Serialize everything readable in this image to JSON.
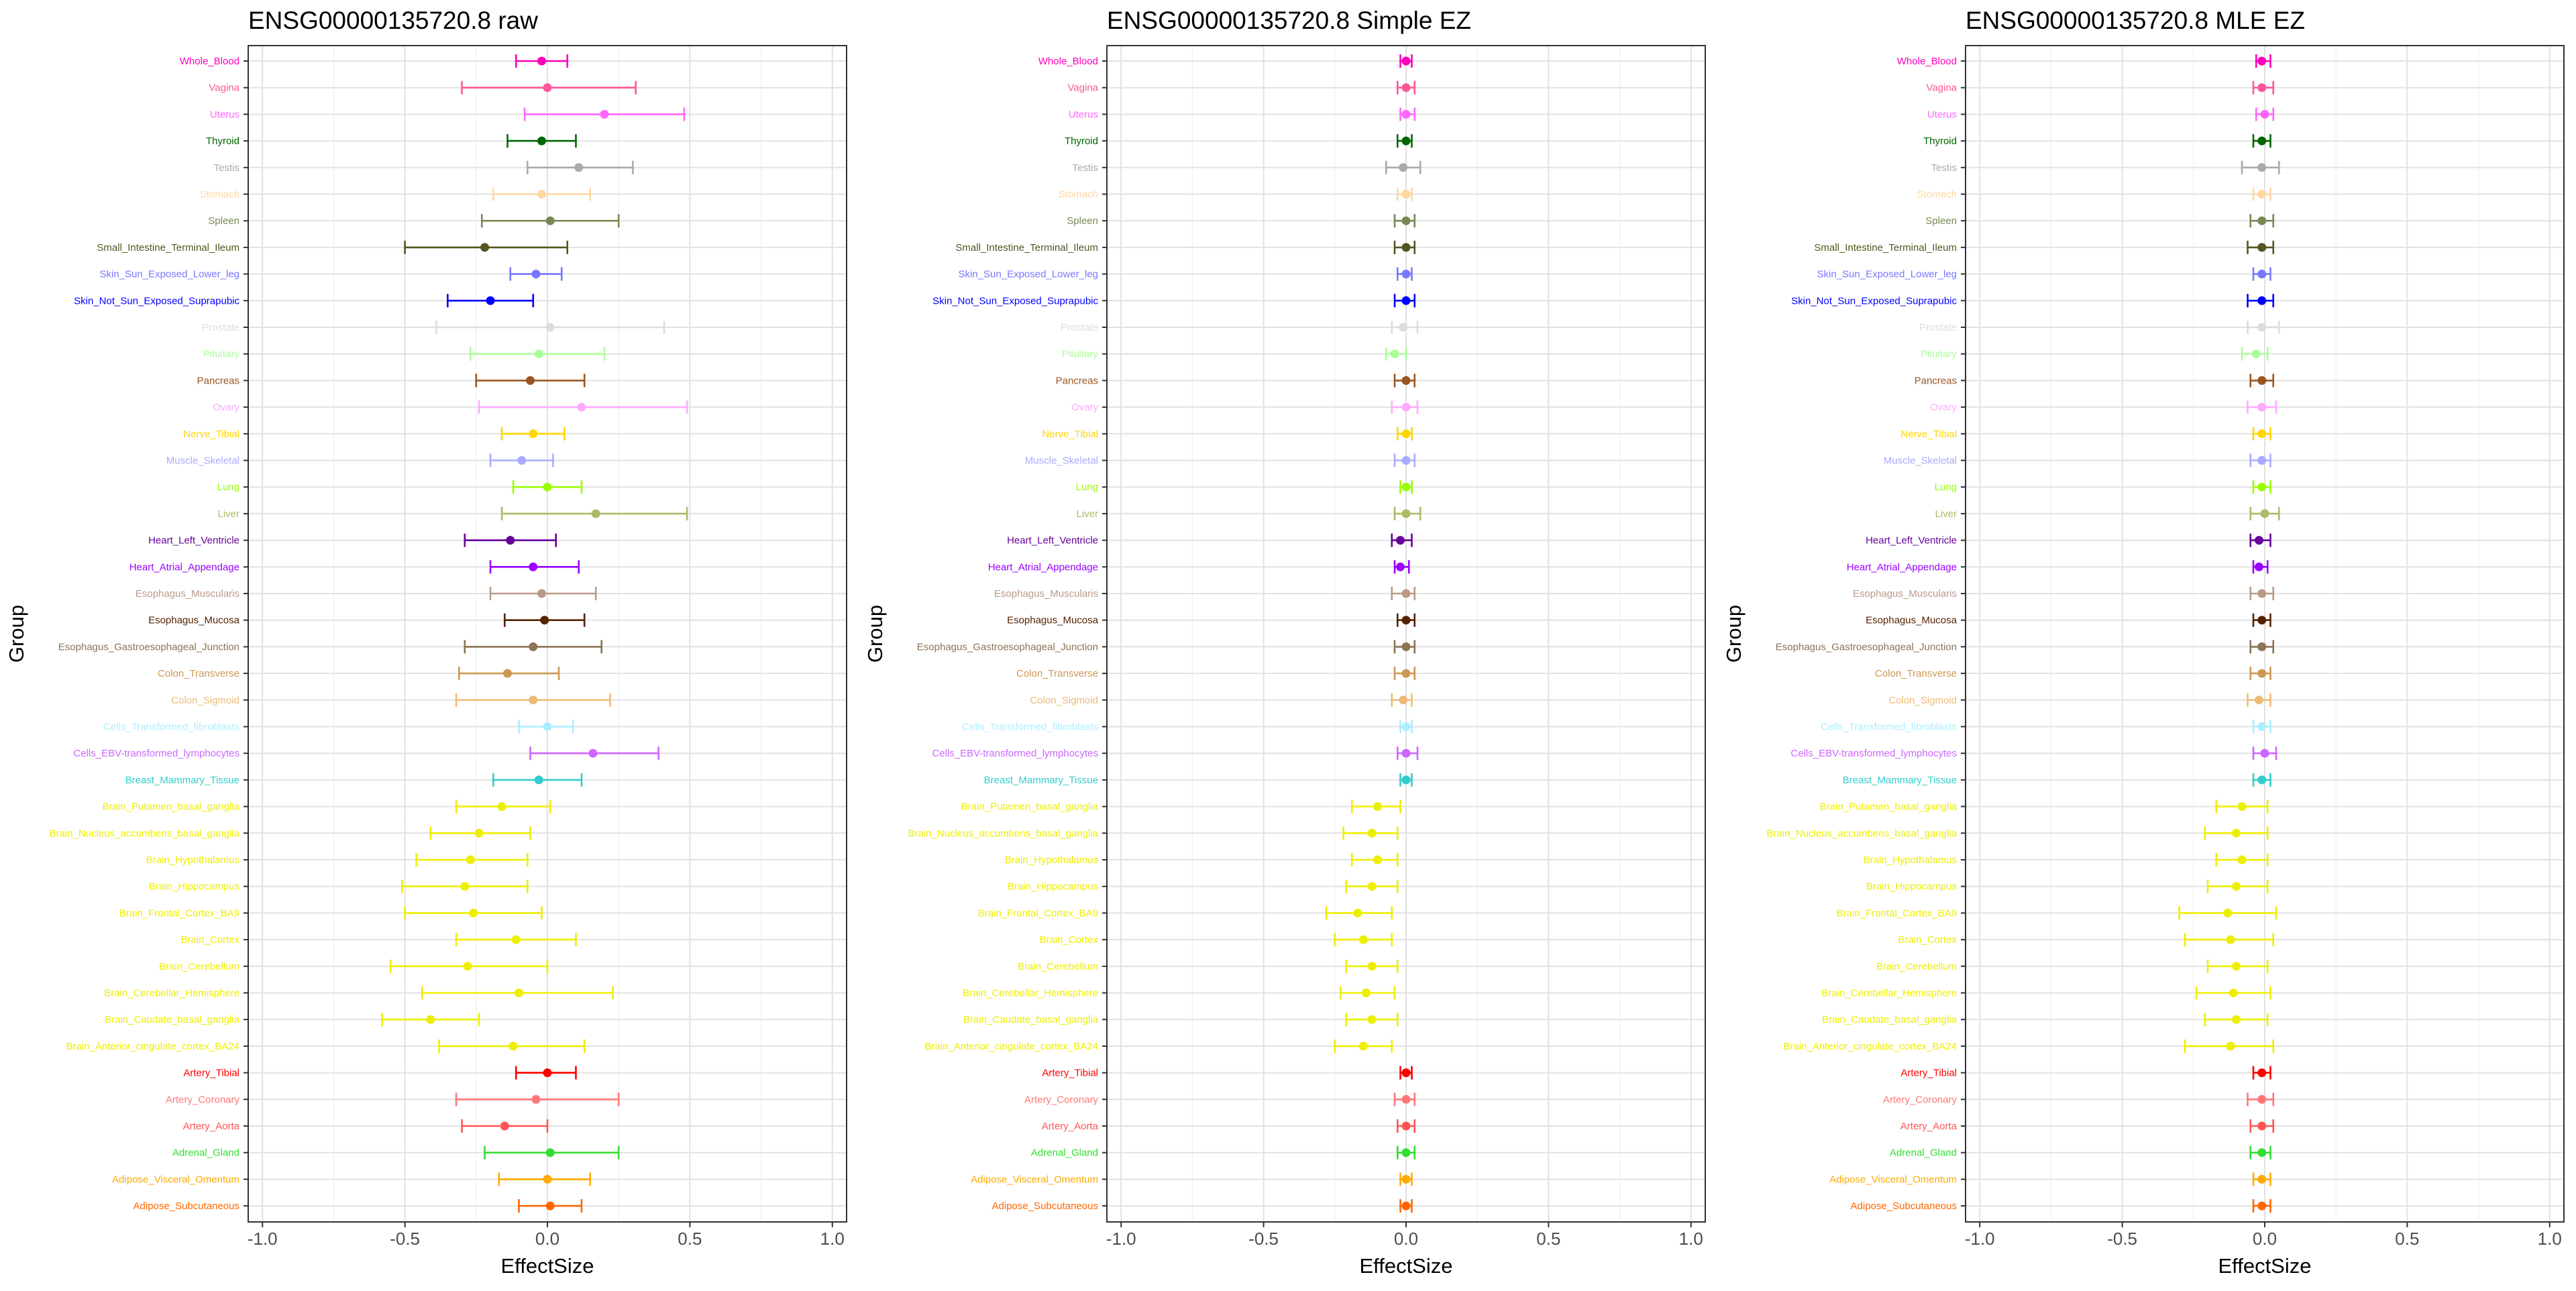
{
  "groups": [
    {
      "name": "Whole_Blood",
      "color": "#FF00BB"
    },
    {
      "name": "Vagina",
      "color": "#FF5599"
    },
    {
      "name": "Uterus",
      "color": "#FF66FF"
    },
    {
      "name": "Thyroid",
      "color": "#006600"
    },
    {
      "name": "Testis",
      "color": "#AAAAAA"
    },
    {
      "name": "Stomach",
      "color": "#FFD79F"
    },
    {
      "name": "Spleen",
      "color": "#778855"
    },
    {
      "name": "Small_Intestine_Terminal_Ileum",
      "color": "#555522"
    },
    {
      "name": "Skin_Sun_Exposed_Lower_leg",
      "color": "#7777FF"
    },
    {
      "name": "Skin_Not_Sun_Exposed_Suprapubic",
      "color": "#0000FF"
    },
    {
      "name": "Prostate",
      "color": "#DDDDDD"
    },
    {
      "name": "Pituitary",
      "color": "#AAFF99"
    },
    {
      "name": "Pancreas",
      "color": "#995522"
    },
    {
      "name": "Ovary",
      "color": "#FFAAFF"
    },
    {
      "name": "Nerve_Tibial",
      "color": "#FFD700"
    },
    {
      "name": "Muscle_Skeletal",
      "color": "#AAAAFF"
    },
    {
      "name": "Lung",
      "color": "#99FF00"
    },
    {
      "name": "Liver",
      "color": "#AABB66"
    },
    {
      "name": "Heart_Left_Ventricle",
      "color": "#660099"
    },
    {
      "name": "Heart_Atrial_Appendage",
      "color": "#9900FF"
    },
    {
      "name": "Esophagus_Muscularis",
      "color": "#BB9988"
    },
    {
      "name": "Esophagus_Mucosa",
      "color": "#552200"
    },
    {
      "name": "Esophagus_Gastroesophageal_Junction",
      "color": "#8B7355"
    },
    {
      "name": "Colon_Transverse",
      "color": "#CC9955"
    },
    {
      "name": "Colon_Sigmoid",
      "color": "#EEBB77"
    },
    {
      "name": "Cells_Transformed_fibroblasts",
      "color": "#AAEEFF"
    },
    {
      "name": "Cells_EBV-transformed_lymphocytes",
      "color": "#CC66FF"
    },
    {
      "name": "Breast_Mammary_Tissue",
      "color": "#33CCCC"
    },
    {
      "name": "Brain_Putamen_basal_ganglia",
      "color": "#EEEE00"
    },
    {
      "name": "Brain_Nucleus_accumbens_basal_ganglia",
      "color": "#EEEE00"
    },
    {
      "name": "Brain_Hypothalamus",
      "color": "#EEEE00"
    },
    {
      "name": "Brain_Hippocampus",
      "color": "#EEEE00"
    },
    {
      "name": "Brain_Frontal_Cortex_BA9",
      "color": "#EEEE00"
    },
    {
      "name": "Brain_Cortex",
      "color": "#EEEE00"
    },
    {
      "name": "Brain_Cerebellum",
      "color": "#EEEE00"
    },
    {
      "name": "Brain_Cerebellar_Hemisphere",
      "color": "#EEEE00"
    },
    {
      "name": "Brain_Caudate_basal_ganglia",
      "color": "#EEEE00"
    },
    {
      "name": "Brain_Anterior_cingulate_cortex_BA24",
      "color": "#EEEE00"
    },
    {
      "name": "Artery_Tibial",
      "color": "#FF0000"
    },
    {
      "name": "Artery_Coronary",
      "color": "#FF7777"
    },
    {
      "name": "Artery_Aorta",
      "color": "#FF5555"
    },
    {
      "name": "Adrenal_Gland",
      "color": "#33DD33"
    },
    {
      "name": "Adipose_Visceral_Omentum",
      "color": "#FFAA00"
    },
    {
      "name": "Adipose_Subcutaneous",
      "color": "#FF6600"
    }
  ],
  "chart_data": [
    {
      "type": "forest",
      "title": "ENSG00000135720.8 raw",
      "xlabel": "EffectSize",
      "ylabel": "Group",
      "xlim": [
        -1.05,
        1.05
      ],
      "xticks": [
        -1.0,
        -0.5,
        0.0,
        0.5,
        1.0
      ],
      "xtick_labels": [
        "-1.0",
        "-0.5",
        "0.0",
        "0.5",
        "1.0"
      ],
      "points": [
        {
          "estimate": -0.02,
          "lower": -0.11,
          "upper": 0.07
        },
        {
          "estimate": 0.0,
          "lower": -0.3,
          "upper": 0.31
        },
        {
          "estimate": 0.2,
          "lower": -0.08,
          "upper": 0.48
        },
        {
          "estimate": -0.02,
          "lower": -0.14,
          "upper": 0.1
        },
        {
          "estimate": 0.11,
          "lower": -0.07,
          "upper": 0.3
        },
        {
          "estimate": -0.02,
          "lower": -0.19,
          "upper": 0.15
        },
        {
          "estimate": 0.01,
          "lower": -0.23,
          "upper": 0.25
        },
        {
          "estimate": -0.22,
          "lower": -0.5,
          "upper": 0.07
        },
        {
          "estimate": -0.04,
          "lower": -0.13,
          "upper": 0.05
        },
        {
          "estimate": -0.2,
          "lower": -0.35,
          "upper": -0.05
        },
        {
          "estimate": 0.01,
          "lower": -0.39,
          "upper": 0.41
        },
        {
          "estimate": -0.03,
          "lower": -0.27,
          "upper": 0.2
        },
        {
          "estimate": -0.06,
          "lower": -0.25,
          "upper": 0.13
        },
        {
          "estimate": 0.12,
          "lower": -0.24,
          "upper": 0.49
        },
        {
          "estimate": -0.05,
          "lower": -0.16,
          "upper": 0.06
        },
        {
          "estimate": -0.09,
          "lower": -0.2,
          "upper": 0.02
        },
        {
          "estimate": 0.0,
          "lower": -0.12,
          "upper": 0.12
        },
        {
          "estimate": 0.17,
          "lower": -0.16,
          "upper": 0.49
        },
        {
          "estimate": -0.13,
          "lower": -0.29,
          "upper": 0.03
        },
        {
          "estimate": -0.05,
          "lower": -0.2,
          "upper": 0.11
        },
        {
          "estimate": -0.02,
          "lower": -0.2,
          "upper": 0.17
        },
        {
          "estimate": -0.01,
          "lower": -0.15,
          "upper": 0.13
        },
        {
          "estimate": -0.05,
          "lower": -0.29,
          "upper": 0.19
        },
        {
          "estimate": -0.14,
          "lower": -0.31,
          "upper": 0.04
        },
        {
          "estimate": -0.05,
          "lower": -0.32,
          "upper": 0.22
        },
        {
          "estimate": 0.0,
          "lower": -0.1,
          "upper": 0.09
        },
        {
          "estimate": 0.16,
          "lower": -0.06,
          "upper": 0.39
        },
        {
          "estimate": -0.03,
          "lower": -0.19,
          "upper": 0.12
        },
        {
          "estimate": -0.16,
          "lower": -0.32,
          "upper": 0.01
        },
        {
          "estimate": -0.24,
          "lower": -0.41,
          "upper": -0.06
        },
        {
          "estimate": -0.27,
          "lower": -0.46,
          "upper": -0.07
        },
        {
          "estimate": -0.29,
          "lower": -0.51,
          "upper": -0.07
        },
        {
          "estimate": -0.26,
          "lower": -0.5,
          "upper": -0.02
        },
        {
          "estimate": -0.11,
          "lower": -0.32,
          "upper": 0.1
        },
        {
          "estimate": -0.28,
          "lower": -0.55,
          "upper": 0.0
        },
        {
          "estimate": -0.1,
          "lower": -0.44,
          "upper": 0.23
        },
        {
          "estimate": -0.41,
          "lower": -0.58,
          "upper": -0.24
        },
        {
          "estimate": -0.12,
          "lower": -0.38,
          "upper": 0.13
        },
        {
          "estimate": 0.0,
          "lower": -0.11,
          "upper": 0.1
        },
        {
          "estimate": -0.04,
          "lower": -0.32,
          "upper": 0.25
        },
        {
          "estimate": -0.15,
          "lower": -0.3,
          "upper": 0.0
        },
        {
          "estimate": 0.01,
          "lower": -0.22,
          "upper": 0.25
        },
        {
          "estimate": 0.0,
          "lower": -0.17,
          "upper": 0.15
        },
        {
          "estimate": 0.01,
          "lower": -0.1,
          "upper": 0.12
        }
      ]
    },
    {
      "type": "forest",
      "title": "ENSG00000135720.8 Simple EZ",
      "xlabel": "EffectSize",
      "ylabel": "Group",
      "xlim": [
        -1.05,
        1.05
      ],
      "xticks": [
        -1.0,
        -0.5,
        0.0,
        0.5,
        1.0
      ],
      "xtick_labels": [
        "-1.0",
        "-0.5",
        "0.0",
        "0.5",
        "1.0"
      ],
      "points": [
        {
          "estimate": 0.0,
          "lower": -0.02,
          "upper": 0.02
        },
        {
          "estimate": 0.0,
          "lower": -0.03,
          "upper": 0.03
        },
        {
          "estimate": 0.0,
          "lower": -0.02,
          "upper": 0.03
        },
        {
          "estimate": 0.0,
          "lower": -0.03,
          "upper": 0.02
        },
        {
          "estimate": -0.01,
          "lower": -0.07,
          "upper": 0.05
        },
        {
          "estimate": 0.0,
          "lower": -0.03,
          "upper": 0.02
        },
        {
          "estimate": 0.0,
          "lower": -0.04,
          "upper": 0.03
        },
        {
          "estimate": 0.0,
          "lower": -0.04,
          "upper": 0.03
        },
        {
          "estimate": 0.0,
          "lower": -0.03,
          "upper": 0.02
        },
        {
          "estimate": 0.0,
          "lower": -0.04,
          "upper": 0.03
        },
        {
          "estimate": -0.01,
          "lower": -0.05,
          "upper": 0.04
        },
        {
          "estimate": -0.04,
          "lower": -0.07,
          "upper": 0.0
        },
        {
          "estimate": 0.0,
          "lower": -0.04,
          "upper": 0.03
        },
        {
          "estimate": 0.0,
          "lower": -0.05,
          "upper": 0.04
        },
        {
          "estimate": 0.0,
          "lower": -0.03,
          "upper": 0.02
        },
        {
          "estimate": 0.0,
          "lower": -0.04,
          "upper": 0.03
        },
        {
          "estimate": 0.0,
          "lower": -0.02,
          "upper": 0.02
        },
        {
          "estimate": 0.0,
          "lower": -0.04,
          "upper": 0.05
        },
        {
          "estimate": -0.02,
          "lower": -0.05,
          "upper": 0.02
        },
        {
          "estimate": -0.02,
          "lower": -0.04,
          "upper": 0.01
        },
        {
          "estimate": 0.0,
          "lower": -0.05,
          "upper": 0.03
        },
        {
          "estimate": 0.0,
          "lower": -0.03,
          "upper": 0.03
        },
        {
          "estimate": 0.0,
          "lower": -0.04,
          "upper": 0.03
        },
        {
          "estimate": 0.0,
          "lower": -0.04,
          "upper": 0.03
        },
        {
          "estimate": -0.01,
          "lower": -0.05,
          "upper": 0.02
        },
        {
          "estimate": 0.0,
          "lower": -0.02,
          "upper": 0.02
        },
        {
          "estimate": 0.0,
          "lower": -0.03,
          "upper": 0.04
        },
        {
          "estimate": 0.0,
          "lower": -0.02,
          "upper": 0.02
        },
        {
          "estimate": -0.1,
          "lower": -0.19,
          "upper": -0.02
        },
        {
          "estimate": -0.12,
          "lower": -0.22,
          "upper": -0.03
        },
        {
          "estimate": -0.1,
          "lower": -0.19,
          "upper": -0.03
        },
        {
          "estimate": -0.12,
          "lower": -0.21,
          "upper": -0.03
        },
        {
          "estimate": -0.17,
          "lower": -0.28,
          "upper": -0.05
        },
        {
          "estimate": -0.15,
          "lower": -0.25,
          "upper": -0.05
        },
        {
          "estimate": -0.12,
          "lower": -0.21,
          "upper": -0.03
        },
        {
          "estimate": -0.14,
          "lower": -0.23,
          "upper": -0.04
        },
        {
          "estimate": -0.12,
          "lower": -0.21,
          "upper": -0.03
        },
        {
          "estimate": -0.15,
          "lower": -0.25,
          "upper": -0.05
        },
        {
          "estimate": 0.0,
          "lower": -0.02,
          "upper": 0.02
        },
        {
          "estimate": 0.0,
          "lower": -0.04,
          "upper": 0.03
        },
        {
          "estimate": 0.0,
          "lower": -0.03,
          "upper": 0.03
        },
        {
          "estimate": 0.0,
          "lower": -0.03,
          "upper": 0.03
        },
        {
          "estimate": 0.0,
          "lower": -0.02,
          "upper": 0.02
        },
        {
          "estimate": 0.0,
          "lower": -0.02,
          "upper": 0.02
        }
      ]
    },
    {
      "type": "forest",
      "title": "ENSG00000135720.8 MLE EZ",
      "xlabel": "EffectSize",
      "ylabel": "Group",
      "xlim": [
        -1.05,
        1.05
      ],
      "xticks": [
        -1.0,
        -0.5,
        0.0,
        0.5,
        1.0
      ],
      "xtick_labels": [
        "-1.0",
        "-0.5",
        "0.0",
        "0.5",
        "1.0"
      ],
      "points": [
        {
          "estimate": -0.01,
          "lower": -0.03,
          "upper": 0.02
        },
        {
          "estimate": -0.01,
          "lower": -0.04,
          "upper": 0.03
        },
        {
          "estimate": 0.0,
          "lower": -0.03,
          "upper": 0.03
        },
        {
          "estimate": -0.01,
          "lower": -0.04,
          "upper": 0.02
        },
        {
          "estimate": -0.01,
          "lower": -0.08,
          "upper": 0.05
        },
        {
          "estimate": -0.01,
          "lower": -0.04,
          "upper": 0.02
        },
        {
          "estimate": -0.01,
          "lower": -0.05,
          "upper": 0.03
        },
        {
          "estimate": -0.01,
          "lower": -0.06,
          "upper": 0.03
        },
        {
          "estimate": -0.01,
          "lower": -0.04,
          "upper": 0.02
        },
        {
          "estimate": -0.01,
          "lower": -0.06,
          "upper": 0.03
        },
        {
          "estimate": -0.01,
          "lower": -0.06,
          "upper": 0.05
        },
        {
          "estimate": -0.03,
          "lower": -0.08,
          "upper": 0.01
        },
        {
          "estimate": -0.01,
          "lower": -0.05,
          "upper": 0.03
        },
        {
          "estimate": -0.01,
          "lower": -0.06,
          "upper": 0.04
        },
        {
          "estimate": -0.01,
          "lower": -0.04,
          "upper": 0.02
        },
        {
          "estimate": -0.01,
          "lower": -0.05,
          "upper": 0.02
        },
        {
          "estimate": -0.01,
          "lower": -0.04,
          "upper": 0.02
        },
        {
          "estimate": 0.0,
          "lower": -0.05,
          "upper": 0.05
        },
        {
          "estimate": -0.02,
          "lower": -0.05,
          "upper": 0.02
        },
        {
          "estimate": -0.02,
          "lower": -0.04,
          "upper": 0.01
        },
        {
          "estimate": -0.01,
          "lower": -0.05,
          "upper": 0.03
        },
        {
          "estimate": -0.01,
          "lower": -0.04,
          "upper": 0.02
        },
        {
          "estimate": -0.01,
          "lower": -0.05,
          "upper": 0.03
        },
        {
          "estimate": -0.01,
          "lower": -0.05,
          "upper": 0.02
        },
        {
          "estimate": -0.02,
          "lower": -0.06,
          "upper": 0.02
        },
        {
          "estimate": -0.01,
          "lower": -0.04,
          "upper": 0.02
        },
        {
          "estimate": 0.0,
          "lower": -0.04,
          "upper": 0.04
        },
        {
          "estimate": -0.01,
          "lower": -0.04,
          "upper": 0.02
        },
        {
          "estimate": -0.08,
          "lower": -0.17,
          "upper": 0.01
        },
        {
          "estimate": -0.1,
          "lower": -0.21,
          "upper": 0.01
        },
        {
          "estimate": -0.08,
          "lower": -0.17,
          "upper": 0.01
        },
        {
          "estimate": -0.1,
          "lower": -0.2,
          "upper": 0.01
        },
        {
          "estimate": -0.13,
          "lower": -0.3,
          "upper": 0.04
        },
        {
          "estimate": -0.12,
          "lower": -0.28,
          "upper": 0.03
        },
        {
          "estimate": -0.1,
          "lower": -0.2,
          "upper": 0.01
        },
        {
          "estimate": -0.11,
          "lower": -0.24,
          "upper": 0.02
        },
        {
          "estimate": -0.1,
          "lower": -0.21,
          "upper": 0.01
        },
        {
          "estimate": -0.12,
          "lower": -0.28,
          "upper": 0.03
        },
        {
          "estimate": -0.01,
          "lower": -0.04,
          "upper": 0.02
        },
        {
          "estimate": -0.01,
          "lower": -0.06,
          "upper": 0.03
        },
        {
          "estimate": -0.01,
          "lower": -0.05,
          "upper": 0.03
        },
        {
          "estimate": -0.01,
          "lower": -0.05,
          "upper": 0.02
        },
        {
          "estimate": -0.01,
          "lower": -0.04,
          "upper": 0.02
        },
        {
          "estimate": -0.01,
          "lower": -0.04,
          "upper": 0.02
        }
      ]
    }
  ]
}
